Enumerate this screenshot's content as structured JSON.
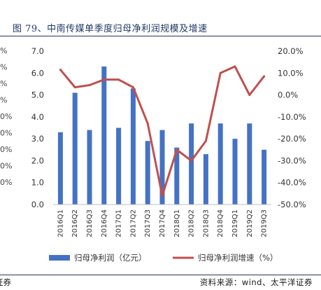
{
  "header": {
    "title": "图 79、中南传媒单季度归母净利润规模及增速"
  },
  "footer": {
    "source": "资料来源：wind、太平洋证券",
    "left_fragment": "证券"
  },
  "edge_fragments": [
    "%",
    "%",
    "%",
    "%",
    "0%",
    "0%",
    "0%",
    "0%",
    "0%"
  ],
  "colors": {
    "bar": "#4472c4",
    "line": "#c0504d",
    "title": "#1f3864"
  },
  "chart_data": {
    "type": "bar",
    "categories": [
      "2016Q1",
      "2016Q2",
      "2016Q3",
      "2016Q4",
      "2017Q1",
      "2017Q2",
      "2017Q3",
      "2017Q4",
      "2018Q1",
      "2018Q2",
      "2018Q3",
      "2018Q4",
      "2019Q1",
      "2019Q2",
      "2019Q3"
    ],
    "series": [
      {
        "name": "归母净利润（亿元）",
        "type": "bar",
        "axis": "left",
        "values": [
          3.3,
          5.1,
          3.4,
          6.3,
          3.5,
          5.3,
          2.9,
          3.4,
          2.6,
          3.7,
          2.3,
          3.7,
          3.0,
          3.7,
          2.5
        ]
      },
      {
        "name": "归母净利润增速（%）",
        "type": "line",
        "axis": "right",
        "values": [
          11.5,
          3.5,
          4.5,
          7.0,
          7.0,
          3.5,
          -13.0,
          -46.0,
          -25.0,
          -30.0,
          -21.0,
          10.0,
          13.0,
          0.0,
          8.5
        ]
      }
    ],
    "y_left": {
      "min": 0,
      "max": 7,
      "ticks": [
        "0.0",
        "1.0",
        "2.0",
        "3.0",
        "4.0",
        "5.0",
        "6.0",
        "7.0"
      ]
    },
    "y_right": {
      "min": -50,
      "max": 20,
      "ticks": [
        "-50.0%",
        "-40.0%",
        "-30.0%",
        "-20.0%",
        "-10.0%",
        "0.0%",
        "10.0%",
        "20.0%"
      ]
    },
    "legend_position": "bottom",
    "grid": false
  }
}
